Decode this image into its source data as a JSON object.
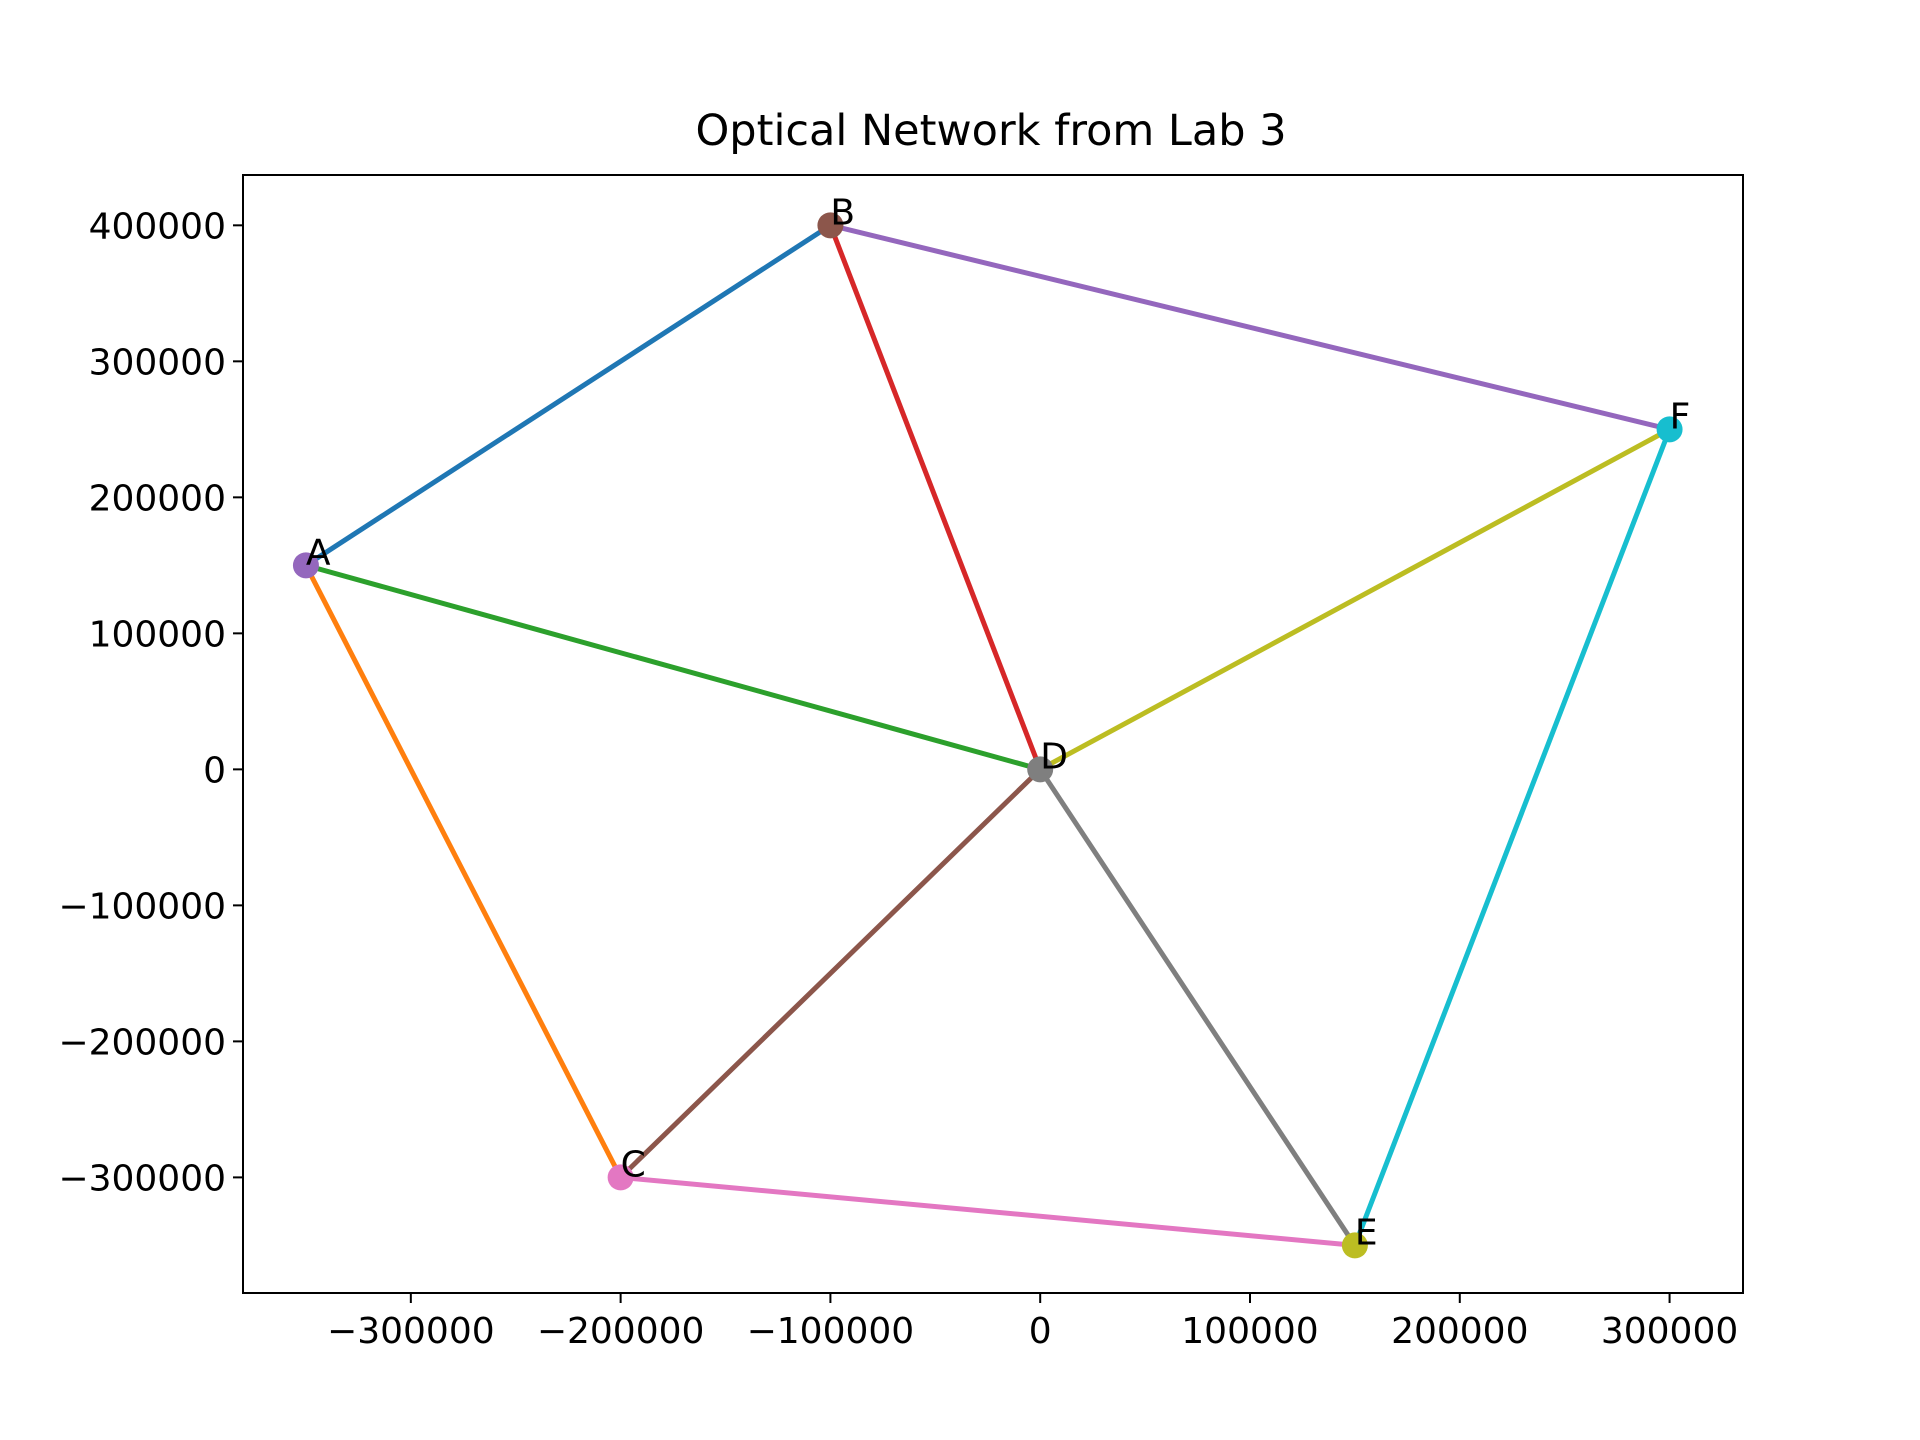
{
  "chart_data": {
    "type": "scatter",
    "title": "Optical Network from Lab 3",
    "xlabel": "",
    "ylabel": "",
    "xlim": [
      -380000,
      335000
    ],
    "ylim": [
      -385000,
      437000
    ],
    "grid": false,
    "x_ticks": [
      -300000,
      -200000,
      -100000,
      0,
      100000,
      200000,
      300000
    ],
    "x_tick_labels": [
      "−300000",
      "−200000",
      "−100000",
      "0",
      "100000",
      "200000",
      "300000"
    ],
    "y_ticks": [
      400000,
      300000,
      200000,
      100000,
      0,
      -100000,
      -200000,
      -300000
    ],
    "y_tick_labels": [
      "400000",
      "300000",
      "200000",
      "100000",
      "0",
      "−100000",
      "−200000",
      "−300000"
    ],
    "nodes": [
      {
        "label": "A",
        "x": -350000,
        "y": 150000,
        "color": "#9467bd"
      },
      {
        "label": "B",
        "x": -100000,
        "y": 400000,
        "color": "#8c564b"
      },
      {
        "label": "C",
        "x": -200000,
        "y": -300000,
        "color": "#e377c2"
      },
      {
        "label": "D",
        "x": 0,
        "y": 0,
        "color": "#7f7f7f"
      },
      {
        "label": "E",
        "x": 150000,
        "y": -350000,
        "color": "#bcbd22"
      },
      {
        "label": "F",
        "x": 300000,
        "y": 250000,
        "color": "#17becf"
      }
    ],
    "edges": [
      {
        "from": "A",
        "to": "B",
        "color": "#1f77b4"
      },
      {
        "from": "A",
        "to": "C",
        "color": "#ff7f0e"
      },
      {
        "from": "A",
        "to": "D",
        "color": "#2ca02c"
      },
      {
        "from": "B",
        "to": "D",
        "color": "#d62728"
      },
      {
        "from": "B",
        "to": "F",
        "color": "#9467bd"
      },
      {
        "from": "C",
        "to": "D",
        "color": "#8c564b"
      },
      {
        "from": "C",
        "to": "E",
        "color": "#e377c2"
      },
      {
        "from": "D",
        "to": "E",
        "color": "#7f7f7f"
      },
      {
        "from": "D",
        "to": "F",
        "color": "#bcbd22"
      },
      {
        "from": "E",
        "to": "F",
        "color": "#17becf"
      }
    ]
  }
}
